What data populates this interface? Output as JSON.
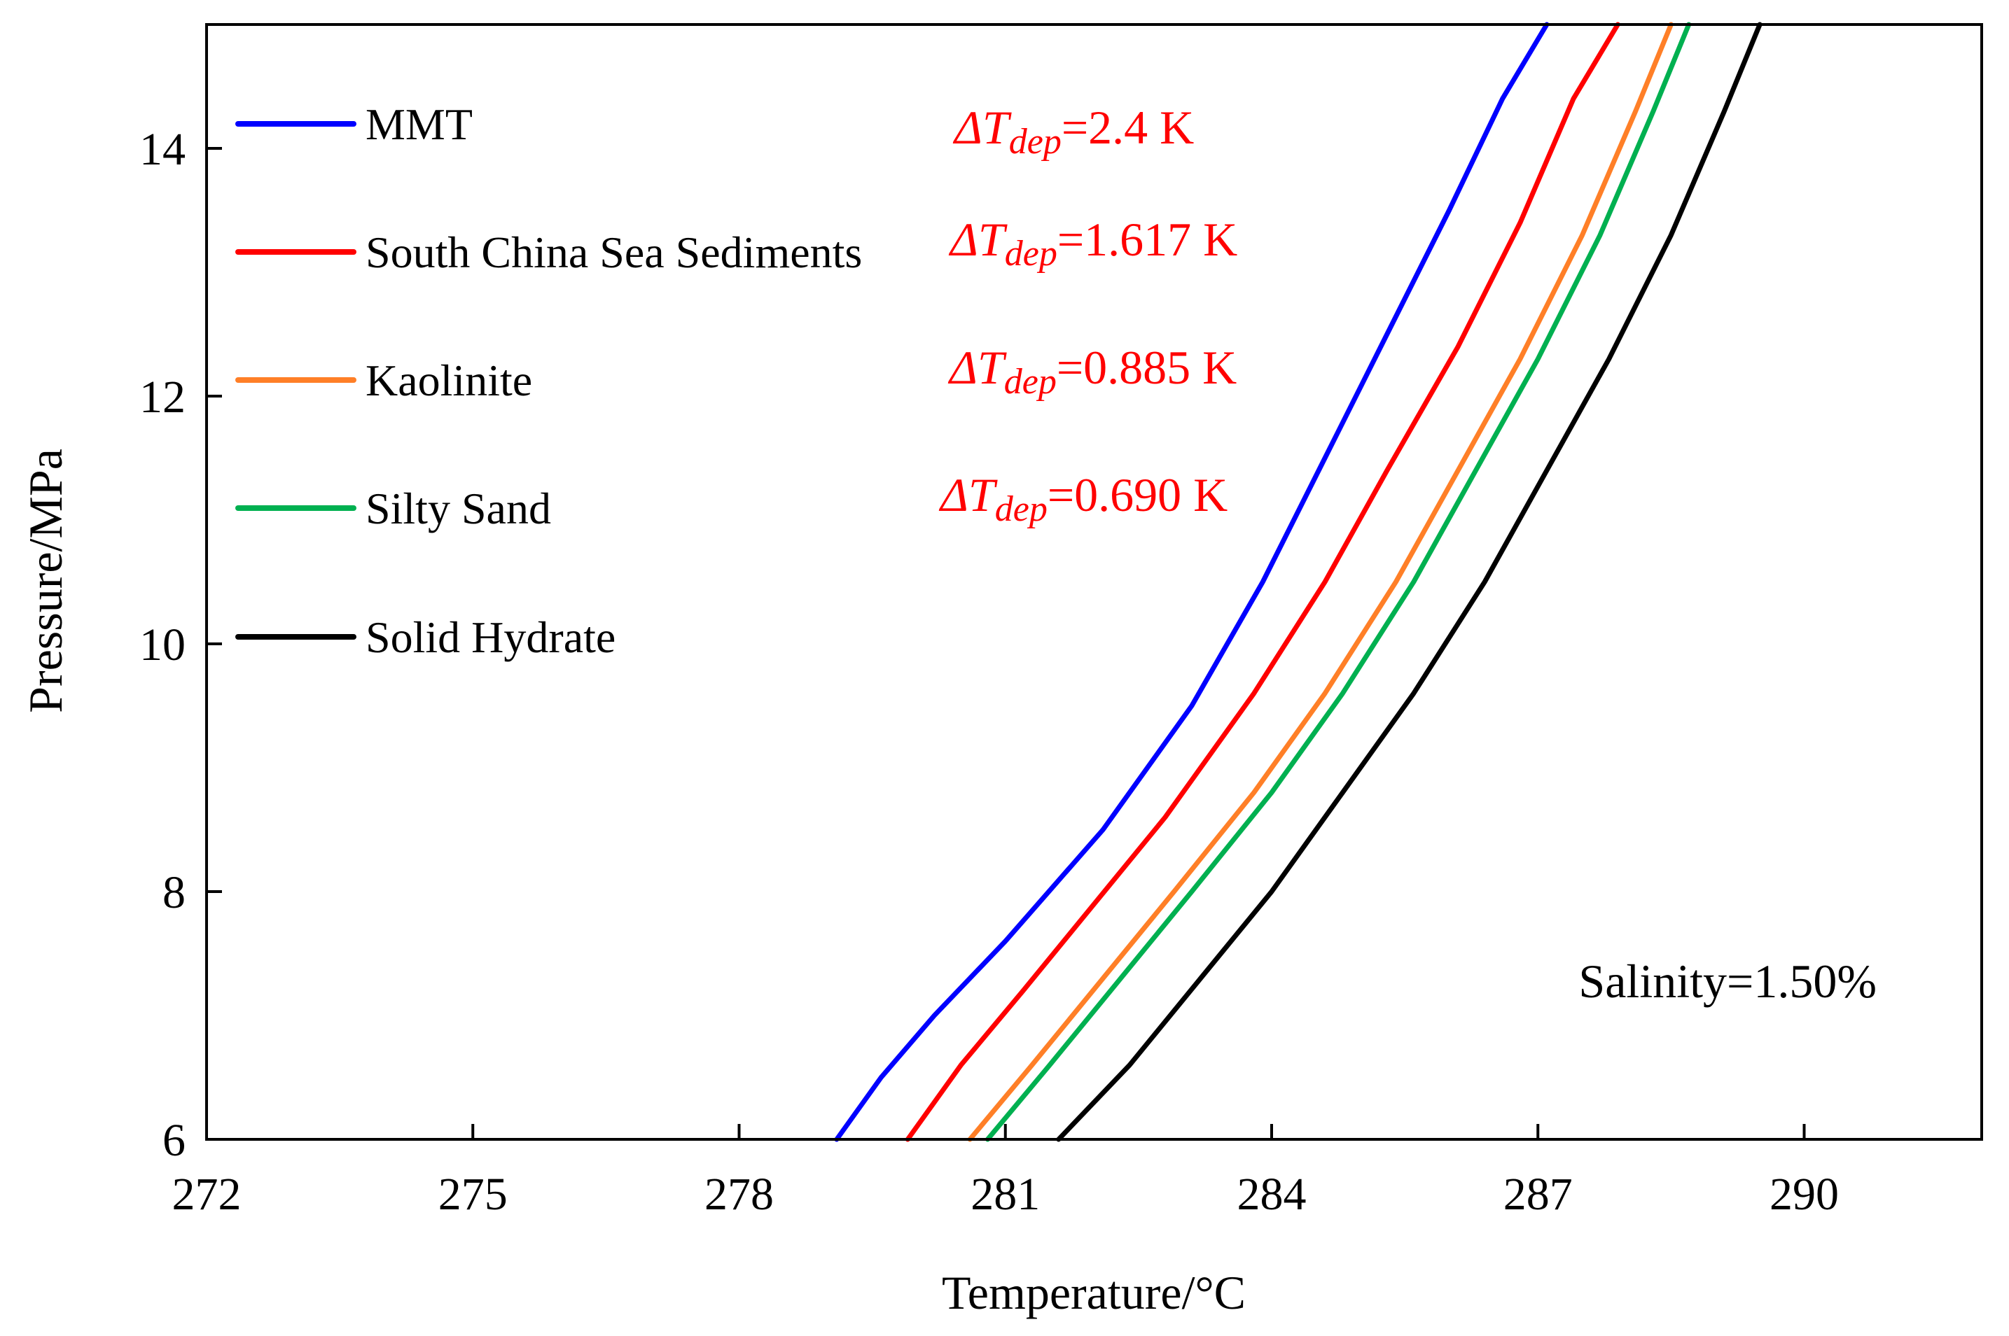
{
  "chart_data": {
    "type": "line",
    "title": "",
    "xlabel": "Temperature/°C",
    "ylabel": "Pressure/MPa",
    "xlim": [
      272,
      292
    ],
    "ylim": [
      6,
      15
    ],
    "xticks": [
      272,
      275,
      278,
      281,
      284,
      287,
      290
    ],
    "yticks": [
      6,
      8,
      10,
      12,
      14
    ],
    "grid": false,
    "legend_position": "top-left",
    "series": [
      {
        "name": "MMT",
        "color": "#0000ff",
        "x": [
          279.1,
          279.6,
          280.2,
          281.0,
          282.1,
          283.1,
          283.9,
          284.6,
          285.3,
          286.0,
          286.6,
          287.1
        ],
        "y": [
          6.0,
          6.5,
          7.0,
          7.6,
          8.5,
          9.5,
          10.5,
          11.5,
          12.5,
          13.5,
          14.4,
          15.0
        ]
      },
      {
        "name": "South China Sea Sediments",
        "color": "#ff0000",
        "x": [
          279.9,
          280.5,
          281.2,
          282.0,
          282.8,
          283.8,
          284.6,
          285.3,
          286.1,
          286.8,
          287.4,
          287.9
        ],
        "y": [
          6.0,
          6.6,
          7.2,
          7.9,
          8.6,
          9.6,
          10.5,
          11.4,
          12.4,
          13.4,
          14.4,
          15.0
        ]
      },
      {
        "name": "Kaolinite",
        "color": "#ff7f27",
        "x": [
          280.6,
          281.3,
          282.1,
          282.9,
          283.8,
          284.6,
          285.4,
          286.1,
          286.8,
          287.5,
          288.1,
          288.5
        ],
        "y": [
          6.0,
          6.6,
          7.3,
          8.0,
          8.8,
          9.6,
          10.5,
          11.4,
          12.3,
          13.3,
          14.3,
          15.0
        ]
      },
      {
        "name": "Silty Sand",
        "color": "#00b050",
        "x": [
          280.8,
          281.5,
          282.3,
          283.1,
          284.0,
          284.8,
          285.6,
          286.3,
          287.0,
          287.7,
          288.3,
          288.7
        ],
        "y": [
          6.0,
          6.6,
          7.3,
          8.0,
          8.8,
          9.6,
          10.5,
          11.4,
          12.3,
          13.3,
          14.3,
          15.0
        ]
      },
      {
        "name": "Solid Hydrate",
        "color": "#000000",
        "x": [
          281.6,
          282.4,
          283.2,
          284.0,
          284.8,
          285.6,
          286.4,
          287.1,
          287.8,
          288.5,
          289.1,
          289.5
        ],
        "y": [
          6.0,
          6.6,
          7.3,
          8.0,
          8.8,
          9.6,
          10.5,
          11.4,
          12.3,
          13.3,
          14.3,
          15.0
        ]
      }
    ],
    "annotations": [
      {
        "prefix": "ΔT",
        "subscript": "dep",
        "value": "=2.4 K",
        "color": "#ff0000"
      },
      {
        "prefix": "ΔT",
        "subscript": "dep",
        "value": "=1.617 K",
        "color": "#ff0000"
      },
      {
        "prefix": "ΔT",
        "subscript": "dep",
        "value": "=0.885 K",
        "color": "#ff0000"
      },
      {
        "prefix": "ΔT",
        "subscript": "dep",
        "value": "=0.690 K",
        "color": "#ff0000"
      }
    ],
    "note": "Salinity=1.50%"
  }
}
